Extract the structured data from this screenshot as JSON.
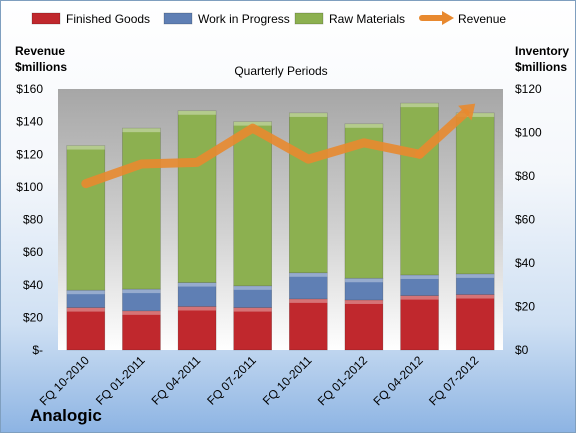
{
  "chart_data": {
    "type": "bar",
    "title": "Quarterly Periods",
    "categories": [
      "FQ 10-2010",
      "FQ 01-2011",
      "FQ 04-2011",
      "FQ 07-2011",
      "FQ 10-2011",
      "FQ 01-2012",
      "FQ 04-2012",
      "FQ 07-2012"
    ],
    "series": [
      {
        "name": "Finished Goods",
        "color": "#c0282d",
        "values": [
          19.5,
          18,
          20,
          19.5,
          23.5,
          23,
          25,
          25.5
        ]
      },
      {
        "name": "Work in Progress",
        "color": "#5f7fb4",
        "values": [
          8,
          10,
          11,
          10,
          12,
          10,
          9.5,
          9.5
        ]
      },
      {
        "name": "Raw Materials",
        "color": "#8cb050",
        "values": [
          66.5,
          74,
          79,
          75.5,
          73.5,
          71,
          79,
          74
        ]
      }
    ],
    "line_series": {
      "name": "Revenue",
      "color": "#e8892f",
      "values": [
        102,
        114,
        115,
        136,
        117,
        127,
        120,
        151
      ]
    },
    "y_left": {
      "label": "Revenue $millions",
      "label_lines": [
        "Revenue",
        "$millions"
      ],
      "min": 0,
      "max": 160,
      "ticks": [
        "$-",
        "$20",
        "$40",
        "$60",
        "$80",
        "$100",
        "$120",
        "$140",
        "$160"
      ]
    },
    "y_right": {
      "label": "Inventory $millions",
      "label_lines": [
        "Inventory",
        "$millions"
      ],
      "min": 0,
      "max": 120,
      "ticks": [
        "$0",
        "$20",
        "$40",
        "$60",
        "$80",
        "$100",
        "$120"
      ]
    },
    "legend": "top",
    "grid": false,
    "company": "Analogic"
  }
}
